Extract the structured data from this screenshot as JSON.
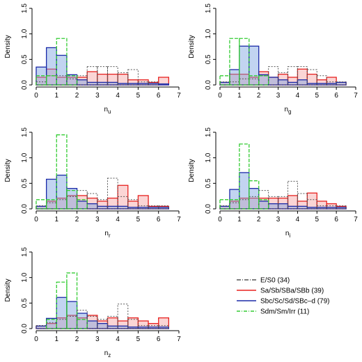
{
  "colors": {
    "E/S0": "#555555",
    "Sa/Sb/SBa/SBb": "#e8211f",
    "Sbc/Sc/Sd/SBc-d": "#1b2aa8",
    "Sdm/Sm/Irr": "#33cc33"
  },
  "fills": {
    "Sa/Sb/SBa/SBb": "rgba(245,150,150,0.40)",
    "Sbc/Sc/Sd/SBc-d": "rgba(120,160,225,0.45)"
  },
  "dashes": {
    "E/S0": "2,2",
    "Sa/Sb/SBa/SBb": "",
    "Sbc/Sc/Sd/SBc-d": "",
    "Sdm/Sm/Irr": "5,2"
  },
  "legend": {
    "entries": [
      {
        "label": "E/S0 (34)",
        "key": "E/S0",
        "dash": "6,2,1,2"
      },
      {
        "label": "Sa/Sb/SBa/SBb (39)",
        "key": "Sa/Sb/SBa/SBb",
        "dash": ""
      },
      {
        "label": "Sbc/Sc/Sd/SBc–d (79)",
        "key": "Sbc/Sc/Sd/SBc-d",
        "dash": ""
      },
      {
        "label": "Sdm/Sm/Irr (11)",
        "key": "Sdm/Sm/Irr",
        "dash": "5,2,1,2"
      }
    ]
  },
  "chart_data": [
    {
      "type": "histogram",
      "xlabel_main": "n",
      "xlabel_sub": "u",
      "ylabel": "Density",
      "xlim": [
        0,
        7
      ],
      "ylim": [
        0,
        1.5
      ],
      "xticks": [
        "0",
        "1",
        "2",
        "3",
        "4",
        "5",
        "6",
        "7"
      ],
      "yticks": [
        "0.0",
        "0.5",
        "1.0",
        "1.5"
      ],
      "grid": false,
      "series": [
        {
          "key": "E/S0",
          "edges": [
            0.0,
            0.5,
            1.0,
            1.5,
            2.0,
            2.5,
            3.0,
            3.5,
            4.0,
            4.5,
            5.0,
            5.5,
            6.0
          ],
          "values": [
            0.06,
            0.18,
            0.18,
            0.12,
            0.18,
            0.36,
            0.36,
            0.36,
            0.24,
            0.3,
            0.06,
            0.06
          ]
        },
        {
          "key": "Sa/Sb/SBa/SBb",
          "edges": [
            0.0,
            0.5,
            1.0,
            1.5,
            2.0,
            2.5,
            3.0,
            3.5,
            4.0,
            4.5,
            5.0,
            5.5,
            6.0,
            6.5
          ],
          "values": [
            0.15,
            0.31,
            0.15,
            0.15,
            0.15,
            0.26,
            0.21,
            0.21,
            0.21,
            0.1,
            0.1,
            0.05,
            0.15
          ]
        },
        {
          "key": "Sbc/Sc/Sd/SBc-d",
          "edges": [
            0.0,
            0.5,
            1.0,
            1.5,
            2.0,
            2.5,
            3.0,
            3.5,
            4.0,
            4.5,
            5.0,
            5.5,
            6.0,
            6.5
          ],
          "values": [
            0.35,
            0.73,
            0.58,
            0.2,
            0.1,
            0.05,
            0.05,
            0.05,
            0.03,
            0.03,
            0.03,
            0.03,
            0.02
          ]
        },
        {
          "key": "Sdm/Sm/Irr",
          "edges": [
            0.0,
            0.5,
            1.0,
            1.5,
            2.0,
            2.5
          ],
          "values": [
            0.18,
            0.18,
            0.91,
            0.18,
            0.0
          ]
        }
      ]
    },
    {
      "type": "histogram",
      "xlabel_main": "n",
      "xlabel_sub": "g",
      "ylabel": "Density",
      "xlim": [
        0,
        7
      ],
      "ylim": [
        0,
        1.5
      ],
      "xticks": [
        "0",
        "1",
        "2",
        "3",
        "4",
        "5",
        "6",
        "7"
      ],
      "yticks": [
        "0.0",
        "0.5",
        "1.0",
        "1.5"
      ],
      "grid": false,
      "series": [
        {
          "key": "E/S0",
          "edges": [
            0.0,
            0.5,
            1.0,
            1.5,
            2.0,
            2.5,
            3.0,
            3.5,
            4.0,
            4.5,
            5.0,
            5.5,
            6.0,
            6.5
          ],
          "values": [
            0.06,
            0.06,
            0.12,
            0.12,
            0.18,
            0.36,
            0.24,
            0.36,
            0.36,
            0.3,
            0.18,
            0.06,
            0.06
          ]
        },
        {
          "key": "Sa/Sb/SBa/SBb",
          "edges": [
            0.0,
            0.5,
            1.0,
            1.5,
            2.0,
            2.5,
            3.0,
            3.5,
            4.0,
            4.5,
            5.0,
            5.5,
            6.0,
            6.5
          ],
          "values": [
            0.05,
            0.21,
            0.21,
            0.15,
            0.26,
            0.15,
            0.21,
            0.15,
            0.31,
            0.21,
            0.1,
            0.15,
            0.05
          ]
        },
        {
          "key": "Sbc/Sc/Sd/SBc-d",
          "edges": [
            0.0,
            0.5,
            1.0,
            1.5,
            2.0,
            2.5,
            3.0,
            3.5,
            4.0,
            4.5,
            5.0,
            5.5,
            6.0,
            6.5
          ],
          "values": [
            0.05,
            0.3,
            0.76,
            0.76,
            0.2,
            0.15,
            0.1,
            0.05,
            0.1,
            0.03,
            0.03,
            0.03,
            0.05
          ]
        },
        {
          "key": "Sdm/Sm/Irr",
          "edges": [
            0.0,
            0.5,
            1.0,
            1.5,
            2.0,
            2.5
          ],
          "values": [
            0.18,
            0.91,
            0.91,
            0.18,
            0.18
          ]
        }
      ]
    },
    {
      "type": "histogram",
      "xlabel_main": "n",
      "xlabel_sub": "r",
      "ylabel": "Density",
      "xlim": [
        0,
        7
      ],
      "ylim": [
        0,
        1.5
      ],
      "xticks": [
        "0",
        "1",
        "2",
        "3",
        "4",
        "5",
        "6",
        "7"
      ],
      "yticks": [
        "0.0",
        "0.5",
        "1.0",
        "1.5"
      ],
      "grid": false,
      "series": [
        {
          "key": "E/S0",
          "edges": [
            0.0,
            0.5,
            1.0,
            1.5,
            2.0,
            2.5,
            3.0,
            3.5,
            4.0,
            4.5,
            5.0,
            5.5,
            6.0,
            6.5
          ],
          "values": [
            0.06,
            0.12,
            0.18,
            0.24,
            0.36,
            0.3,
            0.18,
            0.6,
            0.24,
            0.18,
            0.06,
            0.06,
            0.06
          ]
        },
        {
          "key": "Sa/Sb/SBa/SBb",
          "edges": [
            0.0,
            0.5,
            1.0,
            1.5,
            2.0,
            2.5,
            3.0,
            3.5,
            4.0,
            4.5,
            5.0,
            5.5,
            6.0,
            6.5
          ],
          "values": [
            0.05,
            0.15,
            0.21,
            0.26,
            0.26,
            0.21,
            0.15,
            0.21,
            0.46,
            0.15,
            0.26,
            0.05,
            0.05
          ]
        },
        {
          "key": "Sbc/Sc/Sd/SBc-d",
          "edges": [
            0.0,
            0.5,
            1.0,
            1.5,
            2.0,
            2.5,
            3.0,
            3.5,
            4.0,
            4.5,
            5.0,
            5.5,
            6.0,
            6.5
          ],
          "values": [
            0.05,
            0.58,
            0.66,
            0.4,
            0.15,
            0.1,
            0.05,
            0.05,
            0.05,
            0.03,
            0.03,
            0.03,
            0.03
          ]
        },
        {
          "key": "Sdm/Sm/Irr",
          "edges": [
            0.0,
            0.5,
            1.0,
            1.5,
            2.0,
            2.5
          ],
          "values": [
            0.18,
            0.18,
            1.45,
            0.36,
            0.18
          ]
        }
      ]
    },
    {
      "type": "histogram",
      "xlabel_main": "n",
      "xlabel_sub": "i",
      "ylabel": "Density",
      "xlim": [
        0,
        7
      ],
      "ylim": [
        0,
        1.5
      ],
      "xticks": [
        "0",
        "1",
        "2",
        "3",
        "4",
        "5",
        "6",
        "7"
      ],
      "yticks": [
        "0.0",
        "0.5",
        "1.0",
        "1.5"
      ],
      "grid": false,
      "series": [
        {
          "key": "E/S0",
          "edges": [
            0.0,
            0.5,
            1.0,
            1.5,
            2.0,
            2.5,
            3.0,
            3.5,
            4.0,
            4.5,
            5.0,
            5.5,
            6.0,
            6.5
          ],
          "values": [
            0.06,
            0.12,
            0.18,
            0.24,
            0.36,
            0.24,
            0.24,
            0.54,
            0.3,
            0.18,
            0.06,
            0.06,
            0.06
          ]
        },
        {
          "key": "Sa/Sb/SBa/SBb",
          "edges": [
            0.0,
            0.5,
            1.0,
            1.5,
            2.0,
            2.5,
            3.0,
            3.5,
            4.0,
            4.5,
            5.0,
            5.5,
            6.0,
            6.5
          ],
          "values": [
            0.05,
            0.15,
            0.21,
            0.21,
            0.21,
            0.21,
            0.21,
            0.26,
            0.15,
            0.31,
            0.15,
            0.1,
            0.05
          ]
        },
        {
          "key": "Sbc/Sc/Sd/SBc-d",
          "edges": [
            0.0,
            0.5,
            1.0,
            1.5,
            2.0,
            2.5,
            3.0,
            3.5,
            4.0,
            4.5,
            5.0,
            5.5,
            6.0,
            6.5
          ],
          "values": [
            0.05,
            0.38,
            0.71,
            0.4,
            0.15,
            0.1,
            0.1,
            0.05,
            0.05,
            0.03,
            0.03,
            0.03,
            0.03
          ]
        },
        {
          "key": "Sdm/Sm/Irr",
          "edges": [
            0.0,
            0.5,
            1.0,
            1.5,
            2.0,
            2.5
          ],
          "values": [
            0.18,
            0.18,
            1.27,
            0.55,
            0.18
          ]
        }
      ]
    },
    {
      "type": "histogram",
      "xlabel_main": "n",
      "xlabel_sub": "z",
      "ylabel": "Density",
      "xlim": [
        0,
        7
      ],
      "ylim": [
        0,
        1.5
      ],
      "xticks": [
        "0",
        "1",
        "2",
        "3",
        "4",
        "5",
        "6",
        "7"
      ],
      "yticks": [
        "0.0",
        "0.5",
        "1.0",
        "1.5"
      ],
      "grid": false,
      "series": [
        {
          "key": "E/S0",
          "edges": [
            0.0,
            0.5,
            1.0,
            1.5,
            2.0,
            2.5,
            3.0,
            3.5,
            4.0,
            4.5,
            5.0,
            5.5,
            6.0,
            6.5
          ],
          "values": [
            0.06,
            0.12,
            0.18,
            0.24,
            0.36,
            0.24,
            0.18,
            0.24,
            0.48,
            0.18,
            0.06,
            0.06,
            0.06
          ]
        },
        {
          "key": "Sa/Sb/SBa/SBb",
          "edges": [
            0.0,
            0.5,
            1.0,
            1.5,
            2.0,
            2.5,
            3.0,
            3.5,
            4.0,
            4.5,
            5.0,
            5.5,
            6.0,
            6.5
          ],
          "values": [
            0.05,
            0.1,
            0.21,
            0.26,
            0.21,
            0.26,
            0.15,
            0.21,
            0.15,
            0.21,
            0.15,
            0.1,
            0.21
          ]
        },
        {
          "key": "Sbc/Sc/Sd/SBc-d",
          "edges": [
            0.0,
            0.5,
            1.0,
            1.5,
            2.0,
            2.5,
            3.0,
            3.5,
            4.0,
            4.5,
            5.0,
            5.5,
            6.0,
            6.5
          ],
          "values": [
            0.05,
            0.2,
            0.61,
            0.53,
            0.3,
            0.15,
            0.1,
            0.05,
            0.05,
            0.03,
            0.03,
            0.03,
            0.03
          ]
        },
        {
          "key": "Sdm/Sm/Irr",
          "edges": [
            0.0,
            0.5,
            1.0,
            1.5,
            2.0,
            2.5
          ],
          "values": [
            0.0,
            0.18,
            0.91,
            1.09,
            0.18
          ]
        }
      ]
    }
  ]
}
